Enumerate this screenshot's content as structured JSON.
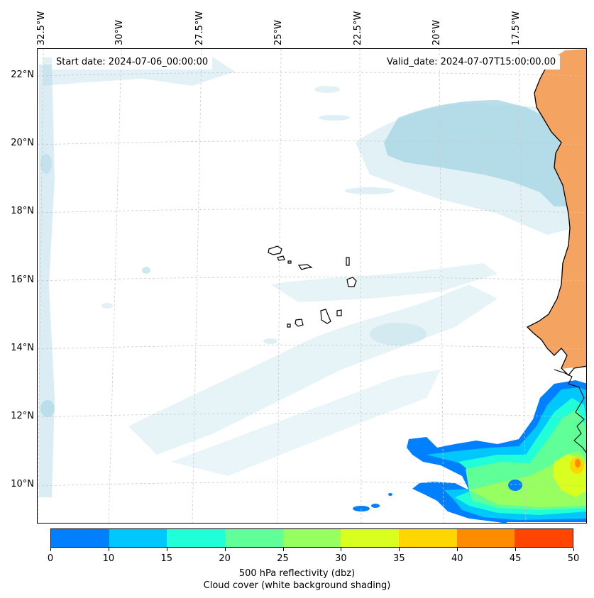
{
  "map": {
    "start_label": "Start date: 2024-07-06_00:00:00",
    "valid_label": "Valid_date: 2024-07-07T15:00:00.00",
    "longitude_labels": [
      "32.5°W",
      "30°W",
      "27.5°W",
      "25°W",
      "22.5°W",
      "20°W",
      "17.5°W"
    ],
    "latitude_labels": [
      "22°N",
      "20°N",
      "18°N",
      "16°N",
      "14°N",
      "12°N",
      "10°N"
    ],
    "colors": {
      "cloud": "#add8e6",
      "land": "#f4a460",
      "coast": "#000000",
      "grid": "#c8c8c8"
    }
  },
  "colorbar": {
    "levels": [
      "0",
      "10",
      "15",
      "20",
      "25",
      "30",
      "35",
      "40",
      "45",
      "50"
    ],
    "colors": [
      "#0080ff",
      "#00c8ff",
      "#20ffd8",
      "#60ff98",
      "#98ff60",
      "#d8ff20",
      "#ffd700",
      "#ff8c00",
      "#ff4500"
    ],
    "title_line1": "500 hPa reflectivity (dbz)",
    "title_line2": "Cloud cover (white background shading)"
  }
}
